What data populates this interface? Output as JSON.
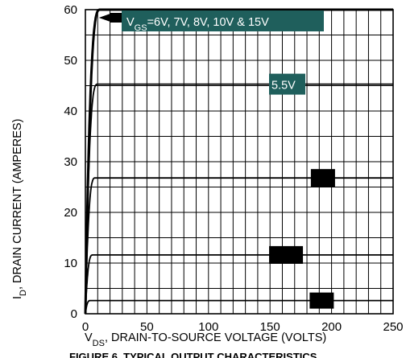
{
  "chart_data": {
    "type": "line",
    "xlabel_main": "V",
    "xlabel_sub": "DS",
    "xlabel_rest": ", DRAIN-TO-SOURCE VOLTAGE (VOLTS)",
    "ylabel_main": "I",
    "ylabel_sub": "D",
    "ylabel_rest": ", DRAIN CURRENT (AMPERES)",
    "caption": "FIGURE 6. TYPICAL OUTPUT CHARACTERISTICS",
    "xlim": [
      0,
      250
    ],
    "ylim": [
      0,
      60
    ],
    "x_ticks": [
      0,
      50,
      100,
      150,
      200,
      250
    ],
    "y_ticks": [
      0,
      10,
      20,
      30,
      40,
      50,
      60
    ],
    "grid": true,
    "series": [
      {
        "name": "VGS=6V, 7V, 8V, 10V & 15V",
        "saturation_current": 60,
        "knee_voltage": 12
      },
      {
        "name": "5.5V",
        "saturation_current": 45.3,
        "knee_voltage": 10
      },
      {
        "saturation_current": 26.8,
        "knee_voltage": 8
      },
      {
        "saturation_current": 11.6,
        "knee_voltage": 6
      },
      {
        "saturation_current": 2.6,
        "knee_voltage": 4
      }
    ],
    "annotations": [
      {
        "prefix": "V",
        "sub": "GS",
        "text": "=6V, 7V, 8V, 10V & 15V",
        "color": "#1f5f5c",
        "points_to_series": 0
      },
      {
        "text": "5.5V",
        "color": "#1f5f5c",
        "points_to_series": 1
      }
    ],
    "redactions": [
      {
        "series": 2,
        "x": 193
      },
      {
        "series": 3,
        "x": 163
      },
      {
        "series": 4,
        "x": 192
      }
    ]
  }
}
